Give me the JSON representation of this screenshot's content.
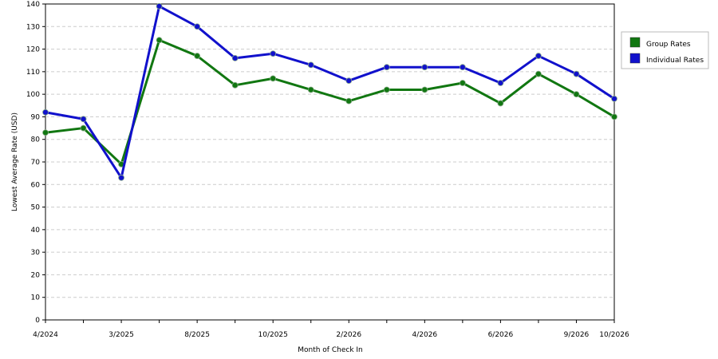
{
  "chart_data": {
    "type": "line",
    "xlabel": "Month of Check In",
    "ylabel": "Lowest Average Rate (USD)",
    "ylim": [
      0,
      140
    ],
    "yticks": [
      0,
      10,
      20,
      30,
      40,
      50,
      60,
      70,
      80,
      90,
      100,
      110,
      120,
      130,
      140
    ],
    "grid": true,
    "legend_position": "right",
    "x_labels": [
      "4/2024",
      "",
      "3/2025",
      "",
      "8/2025",
      "",
      "10/2025",
      "",
      "2/2026",
      "",
      "4/2026",
      "",
      "6/2026",
      "",
      "9/2026",
      "10/2026"
    ],
    "series": [
      {
        "name": "Group Rates",
        "color": "#117711",
        "values": [
          83,
          85,
          69,
          124,
          117,
          104,
          107,
          102,
          97,
          102,
          102,
          105,
          96,
          109,
          100,
          90
        ]
      },
      {
        "name": "Individual Rates",
        "color": "#1111cc",
        "values": [
          92,
          89,
          63,
          139,
          130,
          116,
          118,
          113,
          106,
          112,
          112,
          112,
          105,
          117,
          109,
          98
        ]
      }
    ]
  }
}
